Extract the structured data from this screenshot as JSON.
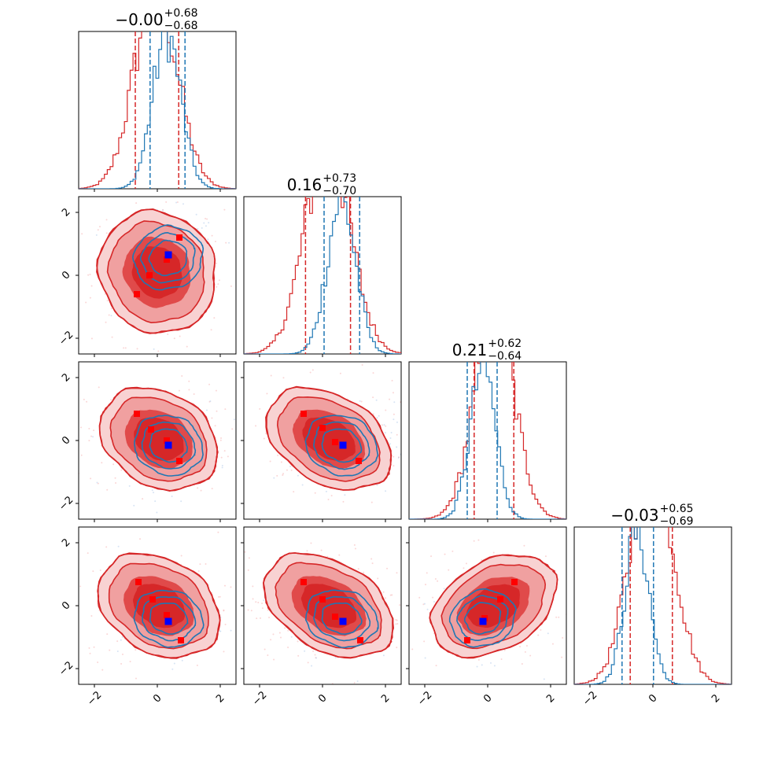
{
  "chart_data": {
    "type": "corner",
    "parameters": 4,
    "axis_range": [
      -2.5,
      2.5
    ],
    "ticks": [
      -2,
      0,
      2
    ],
    "tick_labels": [
      "−2",
      "0",
      "2"
    ],
    "colors": {
      "series_a": "#d62728",
      "series_b": "#1f77b4",
      "marker_a": "#ff0000",
      "marker_b": "#0000ff"
    },
    "titles": [
      {
        "value": "−0.00",
        "plus": "+0.68",
        "minus": "−0.68"
      },
      {
        "value": "0.16",
        "plus": "+0.73",
        "minus": "−0.70"
      },
      {
        "value": "0.21",
        "plus": "+0.62",
        "minus": "−0.64"
      },
      {
        "value": "−0.03",
        "plus": "+0.65",
        "minus": "−0.69"
      }
    ],
    "diagonal": [
      {
        "a": {
          "mean": -0.05,
          "sd": 0.68,
          "q": [
            -0.7,
            0.68
          ]
        },
        "b": {
          "mean": 0.3,
          "sd": 0.45,
          "q": [
            -0.23,
            0.88
          ]
        }
      },
      {
        "a": {
          "mean": 0.16,
          "sd": 0.72,
          "q": [
            -0.54,
            0.89
          ]
        },
        "b": {
          "mean": 0.6,
          "sd": 0.45,
          "q": [
            0.05,
            1.18
          ]
        }
      },
      {
        "a": {
          "mean": 0.21,
          "sd": 0.63,
          "q": [
            -0.43,
            0.83
          ]
        },
        "b": {
          "mean": -0.15,
          "sd": 0.4,
          "q": [
            -0.65,
            0.3
          ]
        }
      },
      {
        "a": {
          "mean": -0.03,
          "sd": 0.67,
          "q": [
            -0.72,
            0.62
          ]
        },
        "b": {
          "mean": -0.5,
          "sd": 0.38,
          "q": [
            -0.98,
            0.02
          ]
        }
      }
    ],
    "pairs": [
      {
        "row": 1,
        "col": 0,
        "a": {
          "cx": 0.0,
          "cy": 0.1,
          "rx": 1.1,
          "ry": 1.2,
          "angle": 30
        },
        "b": {
          "cx": 0.35,
          "cy": 0.55,
          "rx": 1.0,
          "ry": 0.9,
          "angle": 20
        },
        "a_markers": [
          [
            -0.25,
            0.0
          ],
          [
            -0.65,
            -0.6
          ],
          [
            0.3,
            0.5
          ],
          [
            0.7,
            1.2
          ]
        ],
        "b_marker": [
          0.35,
          0.65
        ]
      },
      {
        "row": 2,
        "col": 0,
        "a": {
          "cx": 0.05,
          "cy": 0.05,
          "rx": 1.2,
          "ry": 0.9,
          "angle": -30
        },
        "b": {
          "cx": 0.35,
          "cy": -0.15,
          "rx": 1.0,
          "ry": 0.85,
          "angle": -20
        },
        "a_markers": [
          [
            -0.65,
            0.85
          ],
          [
            -0.2,
            0.35
          ],
          [
            0.3,
            0.0
          ],
          [
            0.7,
            -0.65
          ]
        ],
        "b_marker": [
          0.35,
          -0.15
        ]
      },
      {
        "row": 2,
        "col": 1,
        "a": {
          "cx": 0.2,
          "cy": 0.05,
          "rx": 1.3,
          "ry": 0.85,
          "angle": -30
        },
        "b": {
          "cx": 0.6,
          "cy": -0.15,
          "rx": 1.05,
          "ry": 0.85,
          "angle": -20
        },
        "a_markers": [
          [
            -0.6,
            0.85
          ],
          [
            0.0,
            0.4
          ],
          [
            0.4,
            -0.05
          ],
          [
            1.15,
            -0.65
          ]
        ],
        "b_marker": [
          0.65,
          -0.15
        ]
      },
      {
        "row": 3,
        "col": 0,
        "a": {
          "cx": 0.05,
          "cy": 0.0,
          "rx": 1.25,
          "ry": 0.9,
          "angle": -30
        },
        "b": {
          "cx": 0.35,
          "cy": -0.4,
          "rx": 1.0,
          "ry": 0.8,
          "angle": -15
        },
        "a_markers": [
          [
            -0.6,
            0.75
          ],
          [
            -0.15,
            0.2
          ],
          [
            0.3,
            -0.3
          ],
          [
            0.75,
            -1.1
          ]
        ],
        "b_marker": [
          0.35,
          -0.5
        ]
      },
      {
        "row": 3,
        "col": 1,
        "a": {
          "cx": 0.2,
          "cy": 0.0,
          "rx": 1.35,
          "ry": 0.85,
          "angle": -30
        },
        "b": {
          "cx": 0.6,
          "cy": -0.4,
          "rx": 1.05,
          "ry": 0.8,
          "angle": -15
        },
        "a_markers": [
          [
            -0.6,
            0.75
          ],
          [
            0.0,
            0.2
          ],
          [
            0.4,
            -0.35
          ],
          [
            1.2,
            -1.1
          ]
        ],
        "b_marker": [
          0.65,
          -0.5
        ]
      },
      {
        "row": 3,
        "col": 2,
        "a": {
          "cx": 0.2,
          "cy": 0.0,
          "rx": 1.3,
          "ry": 0.85,
          "angle": 30
        },
        "b": {
          "cx": -0.15,
          "cy": -0.4,
          "rx": 0.95,
          "ry": 0.8,
          "angle": 20
        },
        "a_markers": [
          [
            -0.65,
            -1.1
          ],
          [
            -0.1,
            -0.4
          ],
          [
            0.4,
            0.2
          ],
          [
            0.85,
            0.75
          ]
        ],
        "b_marker": [
          -0.15,
          -0.5
        ]
      }
    ]
  }
}
